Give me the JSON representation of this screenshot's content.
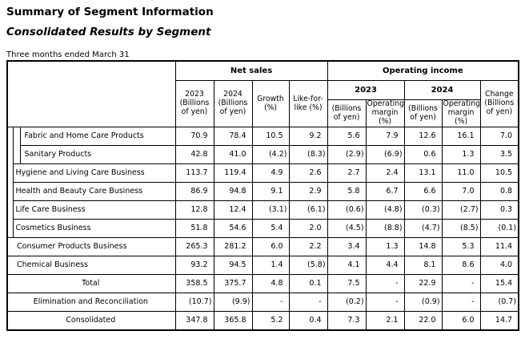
{
  "page": {
    "title": "Summary of Segment Information",
    "subtitle": "Consolidated Results by Segment",
    "period_note": "Three months ended March 31"
  },
  "table": {
    "group_headers": {
      "net_sales": "Net sales",
      "operating_income": "Operating income"
    },
    "net_sales_columns": [
      "2023 (Billions of yen)",
      "2024 (Billions of yen)",
      "Growth (%)",
      "Like-for-like (%)"
    ],
    "oi_year_headers": [
      "2023",
      "2024"
    ],
    "oi_sub_columns": [
      "(Billions of yen)",
      "Operating margin (%)",
      "(Billions of yen)",
      "Operating margin (%)"
    ],
    "change_column": "Change (Billions of yen)",
    "rows": [
      {
        "label": "Fabric and Home Care Products",
        "level": 2,
        "values": [
          "70.9",
          "78.4",
          "10.5",
          "9.2",
          "5.6",
          "7.9",
          "12.6",
          "16.1",
          "7.0"
        ]
      },
      {
        "label": "Sanitary Products",
        "level": 2,
        "values": [
          "42.8",
          "41.0",
          "(4.2)",
          "(8.3)",
          "(2.9)",
          "(6.9)",
          "0.6",
          "1.3",
          "3.5"
        ]
      },
      {
        "label": "Hygiene and Living Care Business",
        "level": 1,
        "values": [
          "113.7",
          "119.4",
          "4.9",
          "2.6",
          "2.7",
          "2.4",
          "13.1",
          "11.0",
          "10.5"
        ]
      },
      {
        "label": "Health and Beauty Care Business",
        "level": 1,
        "values": [
          "86.9",
          "94.8",
          "9.1",
          "2.9",
          "5.8",
          "6.7",
          "6.6",
          "7.0",
          "0.8"
        ]
      },
      {
        "label": "Life Care Business",
        "level": 1,
        "values": [
          "12.8",
          "12.4",
          "(3.1)",
          "(6.1)",
          "(0.6)",
          "(4.8)",
          "(0.3)",
          "(2.7)",
          "0.3"
        ]
      },
      {
        "label": "Cosmetics Business",
        "level": 1,
        "values": [
          "51.8",
          "54.6",
          "5.4",
          "2.0",
          "(4.5)",
          "(8.8)",
          "(4.7)",
          "(8.5)",
          "(0.1)"
        ]
      },
      {
        "label": "Consumer Products Business",
        "level": 0,
        "values": [
          "265.3",
          "281.2",
          "6.0",
          "2.2",
          "3.4",
          "1.3",
          "14.8",
          "5.3",
          "11.4"
        ]
      },
      {
        "label": "Chemical Business",
        "level": 0,
        "values": [
          "93.2",
          "94.5",
          "1.4",
          "(5.8)",
          "4.1",
          "4.4",
          "8.1",
          "8.6",
          "4.0"
        ]
      },
      {
        "label": "Total",
        "level": "center",
        "values": [
          "358.5",
          "375.7",
          "4.8",
          "0.1",
          "7.5",
          "-",
          "22.9",
          "-",
          "15.4"
        ]
      },
      {
        "label": "Elimination and Reconciliation",
        "level": "center",
        "values": [
          "(10.7)",
          "(9.9)",
          "-",
          "-",
          "(0.2)",
          "-",
          "(0.9)",
          "-",
          "(0.7)"
        ]
      },
      {
        "label": "Consolidated",
        "level": "center",
        "values": [
          "347.8",
          "365.8",
          "5.2",
          "0.4",
          "7.3",
          "2.1",
          "22.0",
          "6.0",
          "14.7"
        ]
      }
    ]
  }
}
